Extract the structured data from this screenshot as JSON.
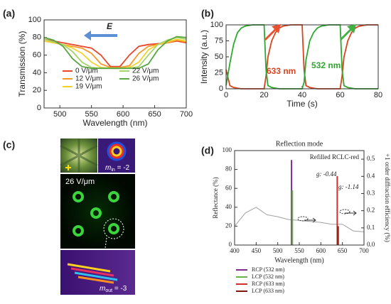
{
  "chart_data": [
    {
      "type": "line",
      "label": "(a)",
      "xlabel": "Wavelength (nm)",
      "ylabel": "Transmission (%)",
      "annotation": "E",
      "x": [
        475,
        490,
        505,
        520,
        535,
        550,
        565,
        580,
        595,
        610,
        625,
        640,
        655,
        670,
        685,
        700
      ],
      "series": [
        {
          "name": "0 V/μm",
          "color": "#e8452c",
          "values": [
            78,
            76,
            74,
            72,
            70,
            68,
            60,
            47,
            47,
            60,
            70,
            72,
            73,
            74,
            76,
            74
          ]
        },
        {
          "name": "12 V/μm",
          "color": "#f39a2a",
          "values": [
            76,
            74,
            72,
            70,
            68,
            62,
            50,
            46,
            46,
            48,
            62,
            70,
            72,
            74,
            77,
            75
          ]
        },
        {
          "name": "19 V/μm",
          "color": "#f2d22e",
          "values": [
            76,
            74,
            72,
            68,
            62,
            52,
            46,
            45,
            45,
            46,
            52,
            66,
            72,
            75,
            78,
            76
          ]
        },
        {
          "name": "22 V/μm",
          "color": "#a8d26a",
          "values": [
            78,
            75,
            72,
            64,
            52,
            46,
            45,
            45,
            45,
            45,
            47,
            60,
            72,
            77,
            80,
            78
          ]
        },
        {
          "name": "26 V/μm",
          "color": "#5aa640",
          "values": [
            80,
            77,
            70,
            56,
            47,
            45,
            45,
            45,
            45,
            45,
            45,
            50,
            66,
            76,
            81,
            80
          ]
        }
      ],
      "xlim": [
        475,
        700
      ],
      "xticks": [
        500,
        550,
        600,
        650,
        700
      ],
      "ylim": [
        0,
        100
      ],
      "yticks": [
        0,
        20,
        40,
        60,
        80,
        100
      ]
    },
    {
      "type": "line",
      "label": "(b)",
      "xlabel": "Time (s)",
      "ylabel": "Intensity (a.u.)",
      "x": [
        0,
        2,
        4,
        6,
        8,
        10,
        14,
        20,
        21,
        22,
        24,
        26,
        28,
        30,
        34,
        40,
        41,
        42,
        44,
        46,
        48,
        50,
        54,
        60,
        61,
        62,
        64,
        66,
        68,
        70,
        74,
        80
      ],
      "series": [
        {
          "name": "633 nm",
          "color": "#d9431e",
          "values": [
            30,
            5,
            2,
            1,
            0,
            0,
            0,
            0,
            20,
            50,
            75,
            88,
            95,
            98,
            100,
            100,
            30,
            5,
            2,
            1,
            0,
            0,
            0,
            0,
            20,
            50,
            75,
            88,
            95,
            98,
            100,
            100
          ]
        },
        {
          "name": "532 nm",
          "color": "#2fa82f",
          "values": [
            5,
            40,
            70,
            88,
            95,
            98,
            100,
            100,
            30,
            5,
            2,
            1,
            0,
            0,
            0,
            0,
            10,
            45,
            75,
            88,
            95,
            98,
            100,
            100,
            30,
            5,
            2,
            1,
            0,
            0,
            0,
            0
          ]
        }
      ],
      "xlim": [
        0,
        80
      ],
      "xticks": [
        0,
        20,
        40,
        60,
        80
      ],
      "ylim": [
        0,
        100
      ],
      "yticks": [
        0,
        25,
        50,
        75,
        100
      ]
    },
    {
      "type": "line",
      "label": "(d)",
      "title": "Reflection mode",
      "subtitle": "Refilled RCLC-red",
      "xlabel": "Wavelength (nm)",
      "ylabel": "Reflectance (%)",
      "y2label": "+1 order diffraction efficiency (%)",
      "annotations": [
        "g: -0.44",
        "g: -1.14"
      ],
      "x": [
        400,
        425,
        450,
        475,
        500,
        525,
        550,
        575,
        600,
        625,
        650,
        675,
        700
      ],
      "series": [
        {
          "color": "#a0a0a0",
          "values": [
            20,
            34,
            40,
            32,
            30,
            27,
            26,
            25,
            24,
            22,
            22,
            15,
            14
          ]
        },
        {
          "name": "RCP (532 nm)",
          "color": "#7b2d8e",
          "x": [
            532
          ],
          "values": [
            90
          ]
        },
        {
          "name": "LCP (532 nm)",
          "color": "#6ab04c",
          "x": [
            534
          ],
          "values": [
            58
          ]
        },
        {
          "name": "RCP (633 nm)",
          "color": "#d0302a",
          "x": [
            638
          ],
          "values": [
            73
          ]
        },
        {
          "name": "LCP (633 nm)",
          "color": "#7a1a12",
          "x": [
            640
          ],
          "values": [
            20
          ]
        }
      ],
      "xlim": [
        400,
        700
      ],
      "xticks": [
        400,
        450,
        500,
        550,
        600,
        650,
        700
      ],
      "ylim": [
        0,
        100
      ],
      "yticks": [
        0,
        20,
        40,
        60,
        80,
        100
      ],
      "y2lim": [
        0,
        0.55
      ],
      "y2ticks": [
        {
          "value": 0,
          "label": "0.0"
        },
        0.1,
        0.2,
        0.3,
        0.4,
        0.5
      ]
    }
  ],
  "panel_c": {
    "label": "(c)",
    "field": "26 V/μm",
    "m_in": {
      "m": "m",
      "sub": "in",
      "rest": " = -2"
    },
    "m_out": {
      "m": "m",
      "sub": "out",
      "rest": " = -3"
    }
  }
}
